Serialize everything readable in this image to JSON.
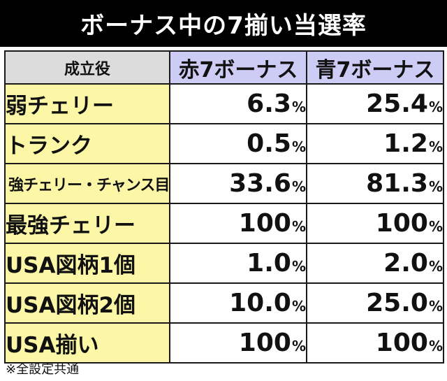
{
  "title": "ボーナス中の7揃い当選率",
  "table": {
    "headers": {
      "role": "成立役",
      "red": "赤7ボーナス",
      "blue": "青7ボーナス"
    },
    "percent_symbol": "%",
    "rows": [
      {
        "role": "弱チェリー",
        "red": "6.3",
        "blue": "25.4"
      },
      {
        "role": "トランク",
        "red": "0.5",
        "blue": "1.2"
      },
      {
        "role": "強チェリー・チャンス目",
        "red": "33.6",
        "blue": "81.3"
      },
      {
        "role": "最強チェリー",
        "red": "100",
        "blue": "100"
      },
      {
        "role": "USA図柄1個",
        "red": "1.0",
        "blue": "2.0"
      },
      {
        "role": "USA図柄2個",
        "red": "10.0",
        "blue": "25.0"
      },
      {
        "role": "USA揃い",
        "red": "100",
        "blue": "100"
      }
    ]
  },
  "note": "※全設定共通"
}
